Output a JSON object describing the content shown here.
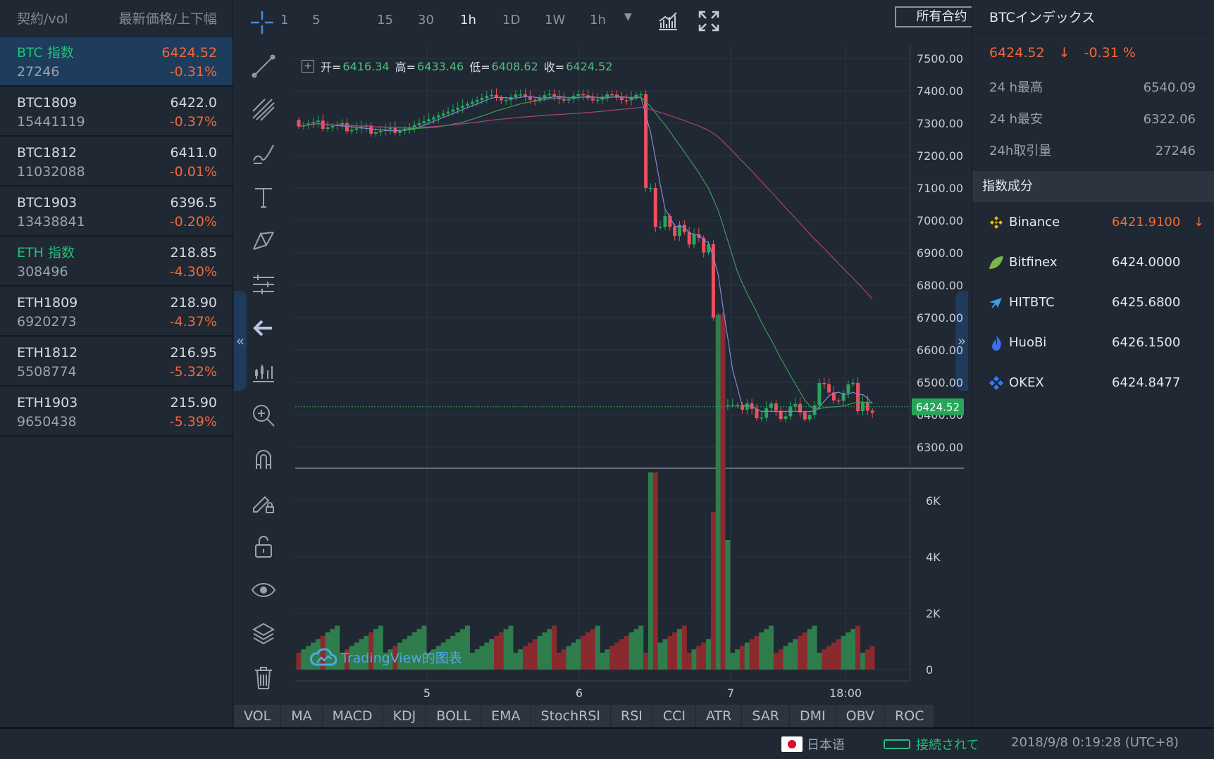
{
  "left": {
    "header": {
      "col1": "契約/vol",
      "col2": "最新価格/上下幅"
    },
    "rows": [
      {
        "name": "BTC 指数",
        "vol": "27246",
        "price": "6424.52",
        "chg": "-0.31%",
        "selected": true,
        "name_color": "green"
      },
      {
        "name": "BTC1809",
        "vol": "15441119",
        "price": "6422.0",
        "chg": "-0.37%"
      },
      {
        "name": "BTC1812",
        "vol": "11032088",
        "price": "6411.0",
        "chg": "-0.01%"
      },
      {
        "name": "BTC1903",
        "vol": "13438841",
        "price": "6396.5",
        "chg": "-0.20%"
      },
      {
        "name": "ETH 指数",
        "vol": "308496",
        "price": "218.85",
        "chg": "-4.30%",
        "name_color": "green"
      },
      {
        "name": "ETH1809",
        "vol": "6920273",
        "price": "218.90",
        "chg": "-4.37%"
      },
      {
        "name": "ETH1812",
        "vol": "5508774",
        "price": "216.95",
        "chg": "-5.32%"
      },
      {
        "name": "ETH1903",
        "vol": "9650438",
        "price": "215.90",
        "chg": "-5.39%"
      }
    ]
  },
  "toolbar": {
    "intervals": [
      "1",
      "5",
      "15",
      "30",
      "1h",
      "1D",
      "1W",
      "1h"
    ],
    "active": "1h",
    "all_contracts": "所有合约"
  },
  "ohlc": {
    "open_label": "开=",
    "open": "6416.34",
    "high_label": "高=",
    "high": "6433.46",
    "low_label": "低=",
    "low": "6408.62",
    "close_label": "收=",
    "close": "6424.52"
  },
  "chart": {
    "price_ticks": [
      "7500.00",
      "7400.00",
      "7300.00",
      "7200.00",
      "7100.00",
      "7000.00",
      "6900.00",
      "6800.00",
      "6700.00",
      "6600.00",
      "6500.00",
      "6400.00",
      "6300.00"
    ],
    "current_price": "6424.52",
    "volume_ticks": [
      "6K",
      "4K",
      "2K",
      "0"
    ],
    "time_ticks": [
      "5",
      "6",
      "7",
      "18:00"
    ],
    "watermark": "TradingView的图表",
    "colors": {
      "up": "#26a65b",
      "down": "#ef4f5e",
      "vol_up": "#2f7d4c",
      "vol_down": "#8a2a2f"
    }
  },
  "indicators": [
    "VOL",
    "MA",
    "MACD",
    "KDJ",
    "BOLL",
    "EMA",
    "StochRSI",
    "RSI",
    "CCI",
    "ATR",
    "SAR",
    "DMI",
    "OBV",
    "ROC"
  ],
  "right": {
    "title": "BTCインデックス",
    "price": "6424.52",
    "arrow": "↓",
    "change": "-0.31 %",
    "stats": [
      {
        "label": "24 h最高",
        "value": "6540.09"
      },
      {
        "label": "24 h最安",
        "value": "6322.06"
      },
      {
        "label": "24h取引量",
        "value": "27246"
      }
    ],
    "section": "指数成分",
    "exchanges": [
      {
        "name": "Binance",
        "value": "6421.9100",
        "down": true,
        "arrow": "↓",
        "icon": "binance-icon"
      },
      {
        "name": "Bitfinex",
        "value": "6424.0000",
        "icon": "bitfinex-icon"
      },
      {
        "name": "HITBTC",
        "value": "6425.6800",
        "icon": "hitbtc-icon"
      },
      {
        "name": "HuoBi",
        "value": "6426.1500",
        "icon": "huobi-icon"
      },
      {
        "name": "OKEX",
        "value": "6424.8477",
        "icon": "okex-icon"
      }
    ]
  },
  "status": {
    "language": "日本语",
    "connection": "接続されて",
    "datetime": "2018/9/8 0:19:28 (UTC+8)"
  }
}
